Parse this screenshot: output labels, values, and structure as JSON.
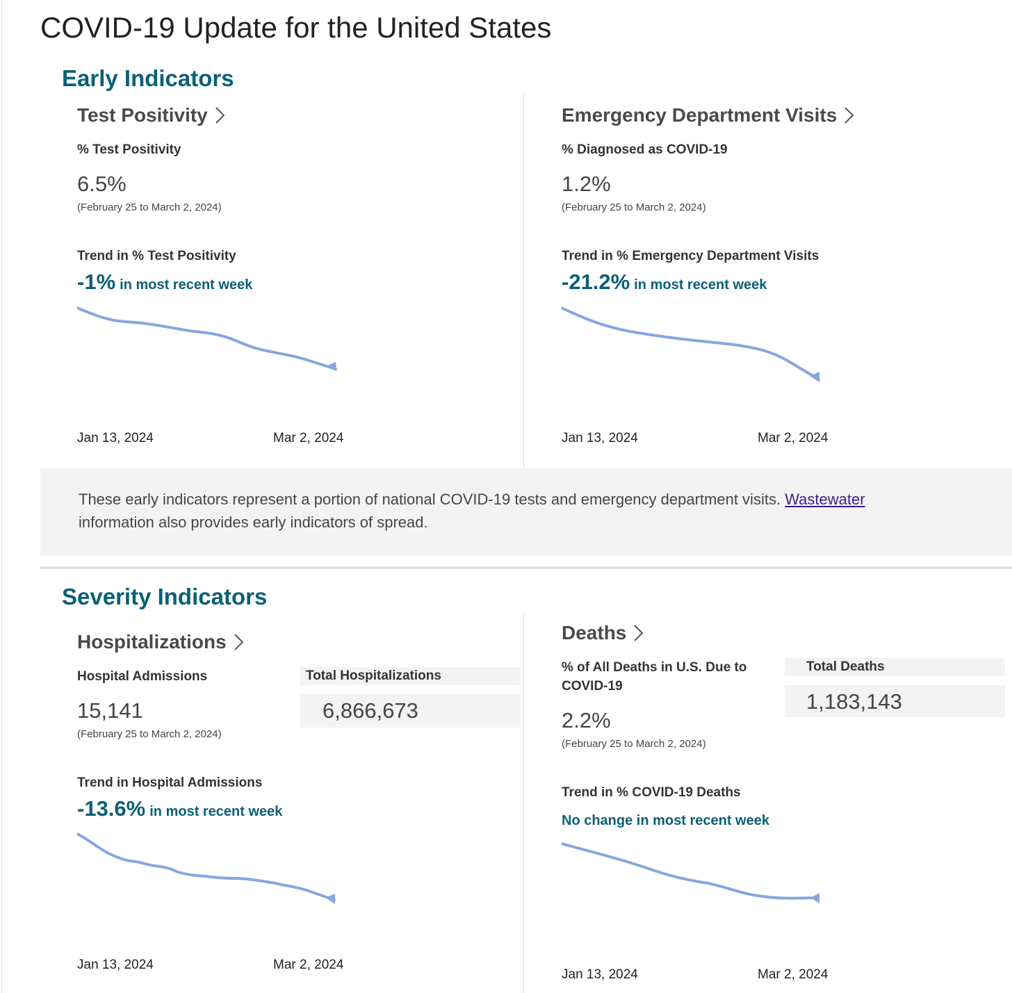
{
  "page": {
    "title": "COVID-19 Update for the United States"
  },
  "colors": {
    "accent": "#0b6076",
    "spark": "#85a6e0",
    "link": "#3b1b8c",
    "panel": "#f3f3f3"
  },
  "icons": {
    "chevron": "chevron-right-icon"
  },
  "early": {
    "title": "Early Indicators",
    "test_positivity": {
      "title": "Test Positivity",
      "metric_label": "% Test Positivity",
      "value": "6.5%",
      "date_range": "(February 25 to March 2, 2024)",
      "trend_label": "Trend in % Test Positivity",
      "trend_pct": "-1%",
      "trend_suffix": "in most recent week",
      "x_start": "Jan 13, 2024",
      "x_end": "Mar 2, 2024"
    },
    "ed_visits": {
      "title": "Emergency Department Visits",
      "metric_label": "% Diagnosed as COVID-19",
      "value": "1.2%",
      "date_range": "(February 25 to March 2, 2024)",
      "trend_label": "Trend in % Emergency Department Visits",
      "trend_pct": "-21.2%",
      "trend_suffix": "in most recent week",
      "x_start": "Jan 13, 2024",
      "x_end": "Mar 2, 2024"
    },
    "note": {
      "text": "These early indicators represent a portion of national COVID-19 tests and emergency department visits.",
      "link": "Wastewater",
      "text_after": "information also provides early indicators of spread."
    }
  },
  "severity": {
    "title": "Severity Indicators",
    "hospitalizations": {
      "title": "Hospitalizations",
      "metric_label": "Hospital Admissions",
      "value": "15,141",
      "date_range": "(February 25 to March 2, 2024)",
      "total_label": "Total Hospitalizations",
      "total_value": "6,866,673",
      "trend_label": "Trend in Hospital Admissions",
      "trend_pct": "-13.6%",
      "trend_suffix": "in most recent week",
      "x_start": "Jan 13, 2024",
      "x_end": "Mar 2, 2024"
    },
    "deaths": {
      "title": "Deaths",
      "metric_label": "% of All Deaths in U.S. Due to COVID-19",
      "value": "2.2%",
      "date_range": "(February 25 to March 2, 2024)",
      "total_label": "Total Deaths",
      "total_value": "1,183,143",
      "trend_label": "Trend in % COVID-19 Deaths",
      "trend_text": "No change in most recent week",
      "x_start": "Jan 13, 2024",
      "x_end": "Mar 2, 2024"
    }
  }
}
